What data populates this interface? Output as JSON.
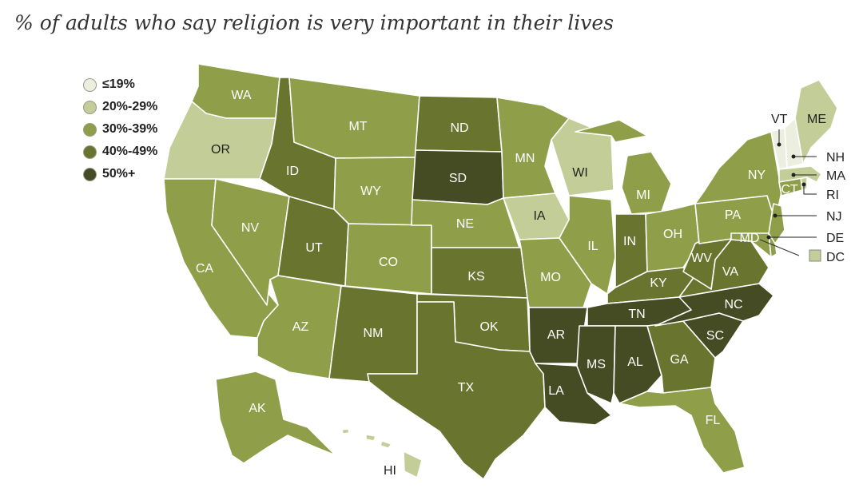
{
  "title": "% of adults who say religion is very important in their lives",
  "colors": {
    "le19": "#ecefdf",
    "20_29": "#c2cd97",
    "30_39": "#8f9f49",
    "40_49": "#69742f",
    "50plus": "#454b22"
  },
  "legend": [
    {
      "label": "≤19%",
      "key": "le19"
    },
    {
      "label": "20%-29%",
      "key": "20_29"
    },
    {
      "label": "30%-39%",
      "key": "30_39"
    },
    {
      "label": "40%-49%",
      "key": "40_49"
    },
    {
      "label": "50%+",
      "key": "50plus"
    }
  ],
  "states": [
    {
      "abbr": "WA",
      "bin": "30_39"
    },
    {
      "abbr": "OR",
      "bin": "20_29"
    },
    {
      "abbr": "CA",
      "bin": "30_39"
    },
    {
      "abbr": "NV",
      "bin": "30_39"
    },
    {
      "abbr": "ID",
      "bin": "40_49"
    },
    {
      "abbr": "MT",
      "bin": "30_39"
    },
    {
      "abbr": "WY",
      "bin": "30_39"
    },
    {
      "abbr": "UT",
      "bin": "40_49"
    },
    {
      "abbr": "AZ",
      "bin": "30_39"
    },
    {
      "abbr": "CO",
      "bin": "30_39"
    },
    {
      "abbr": "NM",
      "bin": "40_49"
    },
    {
      "abbr": "ND",
      "bin": "40_49"
    },
    {
      "abbr": "SD",
      "bin": "50plus"
    },
    {
      "abbr": "NE",
      "bin": "30_39"
    },
    {
      "abbr": "KS",
      "bin": "40_49"
    },
    {
      "abbr": "OK",
      "bin": "40_49"
    },
    {
      "abbr": "TX",
      "bin": "40_49"
    },
    {
      "abbr": "MN",
      "bin": "30_39"
    },
    {
      "abbr": "IA",
      "bin": "20_29"
    },
    {
      "abbr": "MO",
      "bin": "30_39"
    },
    {
      "abbr": "AR",
      "bin": "50plus"
    },
    {
      "abbr": "LA",
      "bin": "50plus"
    },
    {
      "abbr": "WI",
      "bin": "20_29"
    },
    {
      "abbr": "IL",
      "bin": "30_39"
    },
    {
      "abbr": "MI",
      "bin": "30_39"
    },
    {
      "abbr": "IN",
      "bin": "40_49"
    },
    {
      "abbr": "OH",
      "bin": "30_39"
    },
    {
      "abbr": "KY",
      "bin": "40_49"
    },
    {
      "abbr": "TN",
      "bin": "50plus"
    },
    {
      "abbr": "MS",
      "bin": "50plus"
    },
    {
      "abbr": "AL",
      "bin": "50plus"
    },
    {
      "abbr": "GA",
      "bin": "40_49"
    },
    {
      "abbr": "FL",
      "bin": "30_39"
    },
    {
      "abbr": "SC",
      "bin": "50plus"
    },
    {
      "abbr": "NC",
      "bin": "50plus"
    },
    {
      "abbr": "VA",
      "bin": "40_49"
    },
    {
      "abbr": "WV",
      "bin": "40_49"
    },
    {
      "abbr": "PA",
      "bin": "30_39"
    },
    {
      "abbr": "NY",
      "bin": "30_39"
    },
    {
      "abbr": "MD",
      "bin": "30_39"
    },
    {
      "abbr": "DE",
      "bin": "30_39"
    },
    {
      "abbr": "NJ",
      "bin": "30_39"
    },
    {
      "abbr": "CT",
      "bin": "30_39"
    },
    {
      "abbr": "RI",
      "bin": "20_29"
    },
    {
      "abbr": "MA",
      "bin": "20_29"
    },
    {
      "abbr": "VT",
      "bin": "le19"
    },
    {
      "abbr": "NH",
      "bin": "le19"
    },
    {
      "abbr": "ME",
      "bin": "20_29"
    },
    {
      "abbr": "DC",
      "bin": "20_29"
    },
    {
      "abbr": "AK",
      "bin": "30_39"
    },
    {
      "abbr": "HI",
      "bin": "20_29"
    }
  ]
}
